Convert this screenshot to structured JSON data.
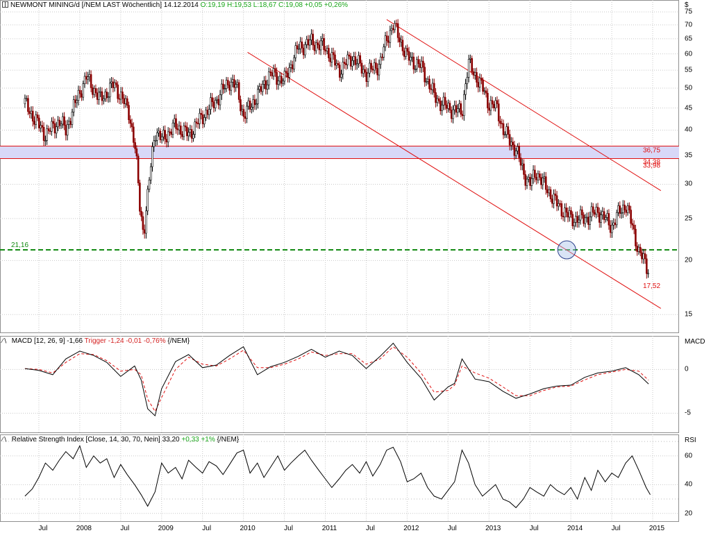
{
  "header_main": {
    "title": "NEWMONT MINING/d [/NEM LAST Wöchentlich]",
    "date": "14.12.2014",
    "ohlc": "O:19,19 H:19,53 L:18,67 C:19,08 +0,05 +0,26%"
  },
  "header_macd": {
    "label": "MACD [12, 26, 9]",
    "value": "-1,66",
    "trigger": "Trigger -1,24 -0,01 -0,76%",
    "symbol": "{/NEM}"
  },
  "header_rsi": {
    "label": "Relative Strength Index [Close, 14, 30, 70, Nein]",
    "value": "33,20",
    "change": "+0,33 +1%",
    "symbol": "{/NEM}"
  },
  "axis_titles": {
    "price": "$",
    "macd": "MACD",
    "rsi": "RSI"
  },
  "annotations": {
    "support": "21,16",
    "band_top": "36,75",
    "band_bottom": "34,38",
    "band_bottom2": "33,98",
    "last_low": "17,52"
  },
  "colors": {
    "price_up": "#000000",
    "price_down": "#8b0000",
    "channel": "#e01010",
    "band": "#d8d8f8",
    "support": "#138a13",
    "macd": "#000000",
    "trigger": "#e01010",
    "rsi": "#000000"
  },
  "chart_data": [
    {
      "type": "line",
      "title": "NEWMONT MINING/d [/NEM LAST Wöchentlich]",
      "scale": "log",
      "ylim": [
        14,
        77
      ],
      "yticks": [
        "15",
        "20",
        "25",
        "30",
        "35",
        "40",
        "45",
        "50",
        "55",
        "60",
        "65",
        "70",
        "75"
      ],
      "xticks": [
        "Jul",
        "2008",
        "Jul",
        "2009",
        "Jul",
        "2010",
        "Jul",
        "2011",
        "Jul",
        "2012",
        "Jul",
        "2013",
        "Jul",
        "2014",
        "Jul",
        "2015"
      ],
      "x": [
        2007.33,
        2007.5,
        2007.58,
        2007.75,
        2007.83,
        2008.0,
        2008.08,
        2008.25,
        2008.42,
        2008.5,
        2008.6,
        2008.68,
        2008.73,
        2008.78,
        2008.83,
        2008.92,
        2009.0,
        2009.17,
        2009.33,
        2009.5,
        2009.67,
        2009.83,
        2009.92,
        2010.0,
        2010.17,
        2010.33,
        2010.5,
        2010.67,
        2010.83,
        2011.0,
        2011.17,
        2011.33,
        2011.5,
        2011.67,
        2011.75,
        2011.83,
        2012.0,
        2012.17,
        2012.33,
        2012.42,
        2012.5,
        2012.67,
        2012.75,
        2012.92,
        2013.0,
        2013.1,
        2013.17,
        2013.33,
        2013.42,
        2013.5,
        2013.58,
        2013.67,
        2013.83,
        2014.0,
        2014.17,
        2014.33,
        2014.5,
        2014.6,
        2014.67,
        2014.75,
        2014.83,
        2014.95
      ],
      "series": [
        {
          "values": [
            46,
            41,
            39,
            42,
            40,
            49,
            53,
            47,
            51,
            48,
            44,
            36,
            27,
            23,
            28,
            40,
            38,
            41,
            39,
            43,
            47,
            52,
            50,
            43,
            48,
            54,
            52,
            62,
            64,
            62,
            55,
            59,
            54,
            57,
            65,
            70,
            59,
            56,
            48,
            46,
            45,
            44,
            57,
            50,
            46,
            45,
            40,
            36,
            32,
            30,
            32,
            30,
            27,
            25,
            25,
            26,
            24,
            26,
            27,
            24,
            21,
            19
          ]
        }
      ],
      "channels": [
        {
          "start": [
            2010.05,
            60.5
          ],
          "end": [
            2015.1,
            15.5
          ]
        },
        {
          "start": [
            2011.75,
            72
          ],
          "end": [
            2015.1,
            29
          ]
        }
      ],
      "band": [
        34.38,
        36.75
      ],
      "support": 21.16,
      "last_low": 17.52
    },
    {
      "type": "line",
      "title": "MACD [12, 26, 9]",
      "ylim": [
        -6.8,
        3.2
      ],
      "yticks": [
        "-5",
        "0"
      ],
      "x": [
        2007.33,
        2007.5,
        2007.67,
        2007.83,
        2008.0,
        2008.17,
        2008.33,
        2008.5,
        2008.67,
        2008.75,
        2008.83,
        2008.92,
        2009.0,
        2009.17,
        2009.33,
        2009.5,
        2009.67,
        2009.83,
        2010.0,
        2010.17,
        2010.33,
        2010.5,
        2010.67,
        2010.83,
        2011.0,
        2011.17,
        2011.33,
        2011.5,
        2011.67,
        2011.83,
        2012.0,
        2012.17,
        2012.33,
        2012.5,
        2012.58,
        2012.67,
        2012.83,
        2013.0,
        2013.17,
        2013.33,
        2013.5,
        2013.67,
        2013.83,
        2014.0,
        2014.17,
        2014.33,
        2014.5,
        2014.67,
        2014.83,
        2014.95
      ],
      "series": [
        {
          "name": "MACD",
          "values": [
            0.1,
            -0.1,
            -0.6,
            1.2,
            2.1,
            1.6,
            0.8,
            -0.8,
            0.4,
            -1.2,
            -4.5,
            -5.3,
            -2.2,
            0.9,
            1.7,
            0.2,
            0.5,
            1.6,
            2.6,
            -0.6,
            0.3,
            0.8,
            1.5,
            2.3,
            1.4,
            2.1,
            1.6,
            0.1,
            1.5,
            3.0,
            0.8,
            -1.0,
            -3.5,
            -2.0,
            -1.6,
            1.2,
            -1.1,
            -1.4,
            -2.5,
            -3.3,
            -2.8,
            -2.2,
            -1.9,
            -1.8,
            -0.9,
            -0.4,
            -0.2,
            0.2,
            -0.6,
            -1.66
          ]
        },
        {
          "name": "Trigger",
          "values": [
            0.1,
            0.0,
            -0.4,
            0.8,
            1.8,
            1.7,
            1.0,
            -0.2,
            0.0,
            -0.6,
            -3.4,
            -4.8,
            -3.2,
            0.0,
            1.4,
            0.6,
            0.4,
            1.2,
            2.2,
            0.2,
            0.2,
            0.6,
            1.2,
            2.0,
            1.6,
            1.8,
            1.8,
            0.6,
            1.2,
            2.6,
            1.4,
            -0.4,
            -2.6,
            -2.4,
            -1.8,
            0.4,
            -0.4,
            -1.0,
            -2.0,
            -3.0,
            -3.0,
            -2.4,
            -2.0,
            -1.9,
            -1.2,
            -0.6,
            -0.3,
            0.0,
            -0.2,
            -1.24
          ]
        }
      ]
    },
    {
      "type": "line",
      "title": "Relative Strength Index [Close, 14, 30, 70, Nein]",
      "ylim": [
        17,
        72
      ],
      "yticks": [
        "20",
        "40",
        "60"
      ],
      "x": [
        2007.33,
        2007.42,
        2007.5,
        2007.58,
        2007.67,
        2007.75,
        2007.83,
        2007.92,
        2008.0,
        2008.08,
        2008.17,
        2008.25,
        2008.33,
        2008.42,
        2008.5,
        2008.58,
        2008.67,
        2008.75,
        2008.83,
        2008.92,
        2009.0,
        2009.08,
        2009.17,
        2009.25,
        2009.33,
        2009.42,
        2009.5,
        2009.58,
        2009.67,
        2009.75,
        2009.83,
        2009.92,
        2010.0,
        2010.08,
        2010.17,
        2010.25,
        2010.33,
        2010.42,
        2010.5,
        2010.58,
        2010.67,
        2010.75,
        2010.83,
        2010.92,
        2011.0,
        2011.08,
        2011.17,
        2011.25,
        2011.33,
        2011.42,
        2011.5,
        2011.58,
        2011.67,
        2011.75,
        2011.83,
        2011.92,
        2012.0,
        2012.08,
        2012.17,
        2012.25,
        2012.33,
        2012.42,
        2012.5,
        2012.58,
        2012.67,
        2012.75,
        2012.83,
        2012.92,
        2013.0,
        2013.08,
        2013.17,
        2013.25,
        2013.33,
        2013.42,
        2013.5,
        2013.58,
        2013.67,
        2013.75,
        2013.83,
        2013.92,
        2014.0,
        2014.08,
        2014.17,
        2014.25,
        2014.33,
        2014.42,
        2014.5,
        2014.58,
        2014.67,
        2014.75,
        2014.83,
        2014.92,
        2014.97
      ],
      "series": [
        {
          "values": [
            32,
            37,
            45,
            55,
            50,
            57,
            63,
            58,
            67,
            52,
            60,
            55,
            58,
            45,
            54,
            47,
            40,
            33,
            25,
            35,
            55,
            48,
            52,
            44,
            57,
            52,
            48,
            56,
            53,
            47,
            54,
            62,
            64,
            48,
            55,
            45,
            52,
            60,
            50,
            55,
            60,
            64,
            57,
            50,
            44,
            38,
            44,
            50,
            54,
            48,
            56,
            46,
            54,
            64,
            66,
            56,
            42,
            44,
            48,
            38,
            32,
            30,
            36,
            42,
            64,
            55,
            40,
            32,
            36,
            40,
            30,
            28,
            24,
            30,
            38,
            35,
            32,
            40,
            36,
            33,
            38,
            30,
            45,
            36,
            50,
            42,
            48,
            45,
            55,
            60,
            50,
            38,
            33
          ]
        }
      ]
    }
  ]
}
